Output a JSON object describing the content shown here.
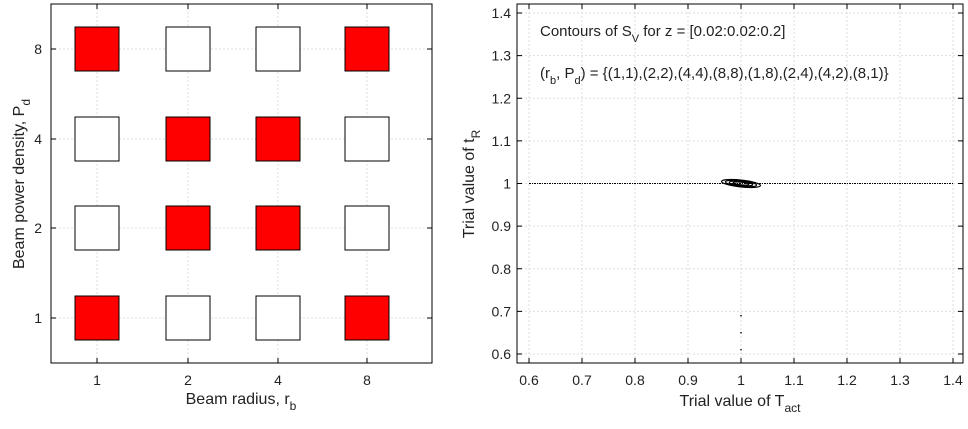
{
  "chart_data": [
    {
      "type": "heatmap",
      "title": "",
      "xlabel": "Beam radius, r",
      "xlabel_sub": "b",
      "ylabel": "Beam power density, P",
      "ylabel_sub": "d",
      "x_ticks": [
        "1",
        "2",
        "4",
        "8"
      ],
      "y_ticks": [
        "1",
        "2",
        "4",
        "8"
      ],
      "grid": true,
      "cells": [
        {
          "x": 1,
          "y": 8,
          "selected": true
        },
        {
          "x": 2,
          "y": 8,
          "selected": false
        },
        {
          "x": 4,
          "y": 8,
          "selected": false
        },
        {
          "x": 8,
          "y": 8,
          "selected": true
        },
        {
          "x": 1,
          "y": 4,
          "selected": false
        },
        {
          "x": 2,
          "y": 4,
          "selected": true
        },
        {
          "x": 4,
          "y": 4,
          "selected": true
        },
        {
          "x": 8,
          "y": 4,
          "selected": false
        },
        {
          "x": 1,
          "y": 2,
          "selected": false
        },
        {
          "x": 2,
          "y": 2,
          "selected": true
        },
        {
          "x": 4,
          "y": 2,
          "selected": true
        },
        {
          "x": 8,
          "y": 2,
          "selected": false
        },
        {
          "x": 1,
          "y": 1,
          "selected": true
        },
        {
          "x": 2,
          "y": 1,
          "selected": false
        },
        {
          "x": 4,
          "y": 1,
          "selected": false
        },
        {
          "x": 8,
          "y": 1,
          "selected": true
        }
      ],
      "colors": {
        "selected": "#ff0000",
        "unselected": "#ffffff"
      }
    },
    {
      "type": "line",
      "title": "",
      "xlabel": "Trial value of T",
      "xlabel_sub": "act",
      "ylabel": "Trial value of t",
      "ylabel_sub": "R",
      "xlim": [
        0.6,
        1.4
      ],
      "ylim": [
        0.6,
        1.4
      ],
      "x_ticks": [
        0.6,
        0.7,
        0.8,
        0.9,
        1,
        1.1,
        1.2,
        1.3,
        1.4
      ],
      "y_ticks": [
        0.6,
        0.7,
        0.8,
        0.9,
        1,
        1.1,
        1.2,
        1.3,
        1.4
      ],
      "grid": true,
      "annotations": {
        "line1_a": "Contours of S",
        "line1_sub": "V",
        "line1_b": " for z = [0.02:0.02:0.2]",
        "line2_a": "(r",
        "line2_sub1": "b",
        "line2_b": ", P",
        "line2_sub2": "d",
        "line2_c": ") = {(1,1),(2,2),(4,4),(8,8),(1,8),(2,4),(4,2),(8,1)}"
      },
      "contour_line": {
        "y": 1.0,
        "x_range": [
          0.6,
          1.4
        ]
      },
      "contour_ellipse": {
        "cx": 1.0,
        "cy": 1.0,
        "rx": 0.037,
        "ry": 0.008
      },
      "dots": [
        {
          "x": 1.0,
          "y": 0.69
        },
        {
          "x": 1.0,
          "y": 0.65
        },
        {
          "x": 1.0,
          "y": 0.61
        }
      ]
    }
  ]
}
